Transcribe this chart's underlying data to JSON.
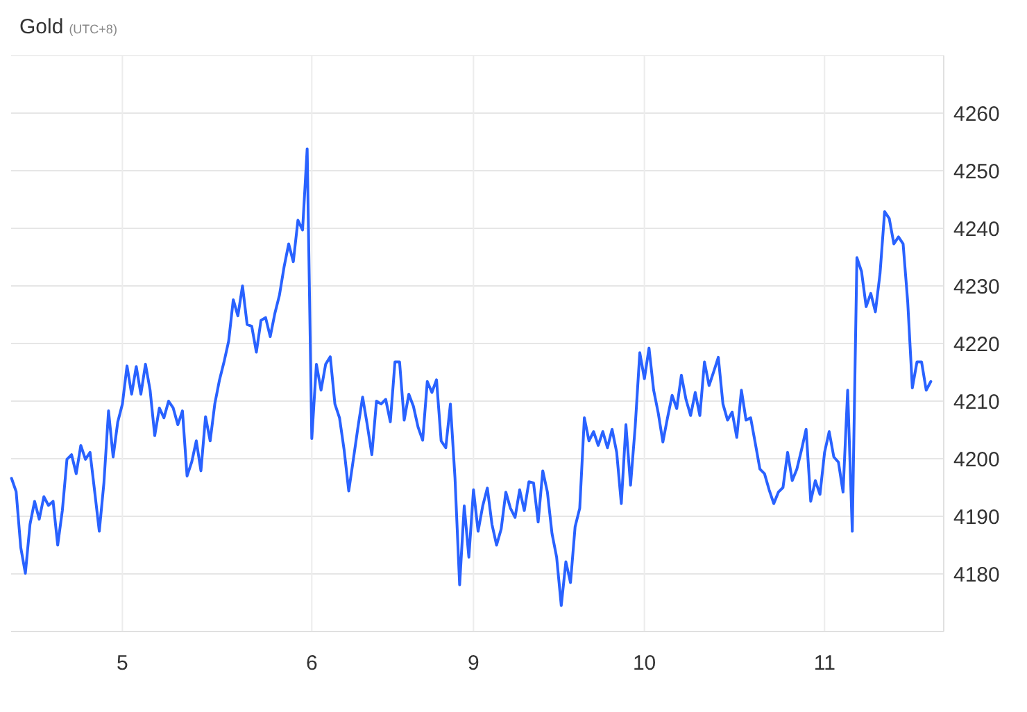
{
  "chart_data": {
    "type": "line",
    "title": "Gold",
    "subtitle": "(UTC+8)",
    "categories": [
      null,
      null,
      null,
      null,
      null,
      null,
      null,
      null,
      null,
      null,
      null,
      null,
      null,
      null,
      null,
      null,
      null,
      null,
      null,
      null,
      null,
      null,
      null,
      null,
      "5",
      null,
      null,
      null,
      null,
      null,
      null,
      null,
      null,
      null,
      null,
      null,
      null,
      null,
      null,
      null,
      null,
      null,
      null,
      null,
      null,
      null,
      null,
      null,
      null,
      null,
      null,
      null,
      null,
      null,
      null,
      null,
      null,
      null,
      null,
      null,
      null,
      null,
      null,
      null,
      null,
      "6",
      null,
      null,
      null,
      null,
      null,
      null,
      null,
      null,
      null,
      null,
      null,
      null,
      null,
      null,
      null,
      null,
      null,
      null,
      null,
      null,
      null,
      null,
      null,
      null,
      null,
      null,
      null,
      null,
      null,
      null,
      null,
      null,
      null,
      null,
      "9",
      null,
      null,
      null,
      null,
      null,
      null,
      null,
      null,
      null,
      null,
      null,
      null,
      null,
      null,
      null,
      null,
      null,
      null,
      null,
      null,
      null,
      null,
      null,
      null,
      null,
      null,
      null,
      null,
      null,
      null,
      null,
      null,
      null,
      null,
      null,
      null,
      "10",
      null,
      null,
      null,
      null,
      null,
      null,
      null,
      null,
      null,
      null,
      null,
      null,
      null,
      null,
      null,
      null,
      null,
      null,
      null,
      null,
      null,
      null,
      null,
      null,
      null,
      null,
      null,
      null,
      null,
      null,
      null,
      null,
      null,
      null,
      null,
      null,
      null,
      null,
      "11",
      null,
      null,
      null,
      null,
      null,
      null,
      null,
      null,
      null,
      null,
      null,
      null,
      null,
      null,
      null,
      null,
      null,
      null,
      null,
      null,
      null,
      null,
      null
    ],
    "ylim": [
      4170,
      4270
    ],
    "yticks": [
      4180,
      4190,
      4200,
      4210,
      4220,
      4230,
      4240,
      4250,
      4260
    ],
    "grid": true,
    "marker": "none",
    "line_style": "solid",
    "series": [
      {
        "color": "#2962ff",
        "values": [
          4196.6,
          4194.3,
          4184.6,
          4180.1,
          4188.6,
          4192.6,
          4189.5,
          4193.4,
          4191.9,
          4192.6,
          4185,
          4191,
          4199.9,
          4200.7,
          4197.4,
          4202.3,
          4199.9,
          4201.1,
          4194.3,
          4187.4,
          4195.8,
          4208.3,
          4200.3,
          4206.4,
          4209.5,
          4216.1,
          4211.2,
          4216,
          4211.2,
          4216.4,
          4211.9,
          4204,
          4208.8,
          4207.1,
          4210,
          4208.8,
          4205.9,
          4208.3,
          4197,
          4199.4,
          4203.1,
          4197.9,
          4207.3,
          4203.1,
          4209.5,
          4213.6,
          4216.8,
          4220.4,
          4227.6,
          4224.8,
          4230,
          4223.3,
          4223,
          4218.5,
          4224,
          4224.5,
          4221.2,
          4225.2,
          4228.4,
          4233.3,
          4237.3,
          4234.2,
          4241.4,
          4239.7,
          4253.8,
          4203.5,
          4216.4,
          4211.9,
          4216.4,
          4217.7,
          4209.5,
          4207.1,
          4201.5,
          4194.4,
          4199.9,
          4205.5,
          4210.7,
          4205.9,
          4200.7,
          4210,
          4209.5,
          4210.3,
          4206.4,
          4216.8,
          4216.8,
          4206.7,
          4211.2,
          4209.1,
          4205.5,
          4203.2,
          4213.4,
          4211.5,
          4213.7,
          4203.1,
          4201.9,
          4209.5,
          4196.6,
          4178.1,
          4191.8,
          4182.9,
          4194.6,
          4187.4,
          4191.8,
          4194.9,
          4188.6,
          4185,
          4187.8,
          4194.2,
          4191.4,
          4189.8,
          4194.6,
          4191,
          4196,
          4195.8,
          4189,
          4197.9,
          4194.2,
          4187,
          4182.9,
          4174.5,
          4182.1,
          4178.5,
          4188.2,
          4191.4,
          4207.1,
          4203.1,
          4204.7,
          4202.3,
          4204.7,
          4201.9,
          4205.1,
          4201.1,
          4192.2,
          4205.9,
          4195.4,
          4205.5,
          4218.4,
          4213.9,
          4219.2,
          4211.9,
          4207.9,
          4202.9,
          4207.1,
          4211,
          4208.7,
          4214.5,
          4210.3,
          4207.5,
          4211.5,
          4207.5,
          4216.8,
          4212.7,
          4215.1,
          4217.6,
          4209.5,
          4206.7,
          4208.1,
          4203.7,
          4211.9,
          4206.7,
          4207.1,
          4202.7,
          4198.2,
          4197.4,
          4194.6,
          4192.2,
          4194.2,
          4195,
          4201.1,
          4196.2,
          4198.2,
          4201.5,
          4205.1,
          4192.6,
          4196.2,
          4193.8,
          4201.1,
          4204.7,
          4200.3,
          4199.4,
          4194.2,
          4211.9,
          4187.4,
          4234.9,
          4232.5,
          4226.4,
          4228.7,
          4225.5,
          4232.1,
          4242.9,
          4241.7,
          4237.3,
          4238.5,
          4237.3,
          4227.2,
          4212.3,
          4216.8,
          4216.8,
          4211.9,
          4213.4
        ]
      }
    ]
  }
}
